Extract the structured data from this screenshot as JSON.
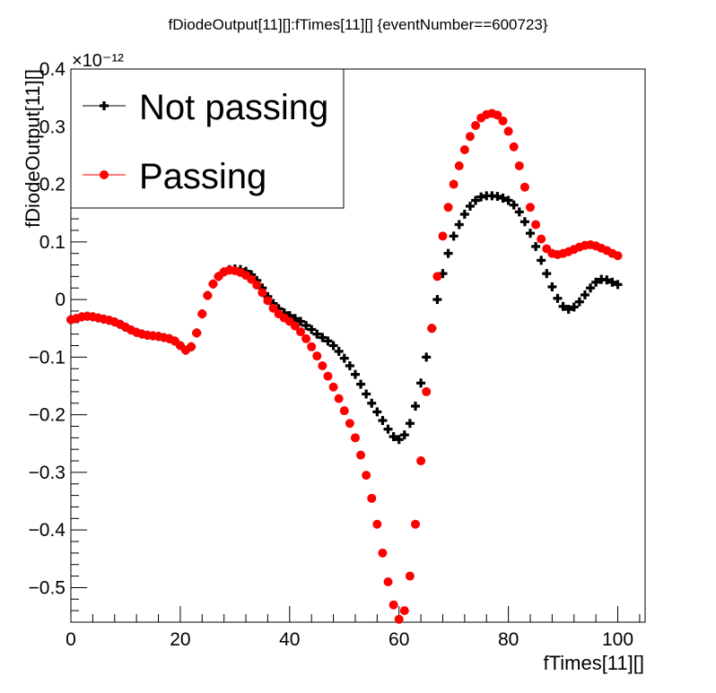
{
  "chart_data": {
    "type": "scatter",
    "title": "fDiodeOutput[11][]:fTimes[11][] {eventNumber==600723}",
    "xlabel": "fTimes[11][]",
    "ylabel": "fDiodeOutput[11][]",
    "y_exponent": "×10⁻¹²",
    "xlim": [
      0,
      105
    ],
    "ylim": [
      -0.56,
      0.4
    ],
    "x_ticks": [
      0,
      20,
      40,
      60,
      80,
      100
    ],
    "x_tick_labels": [
      "0",
      "20",
      "40",
      "60",
      "80",
      "100"
    ],
    "y_ticks": [
      -0.5,
      -0.4,
      -0.3,
      -0.2,
      -0.1,
      0,
      0.1,
      0.2,
      0.3,
      0.4
    ],
    "y_tick_labels": [
      "−0.5",
      "−0.4",
      "−0.3",
      "−0.2",
      "−0.1",
      "0",
      "0.1",
      "0.2",
      "0.3",
      "0.4"
    ],
    "grid": false,
    "legend_position": "top-left",
    "series": [
      {
        "name": "Not passing",
        "marker": "cross",
        "color": "#000000",
        "x": [
          0,
          1,
          2,
          3,
          4,
          5,
          6,
          7,
          8,
          9,
          10,
          11,
          12,
          13,
          14,
          15,
          16,
          17,
          18,
          19,
          20,
          21,
          22,
          23,
          24,
          25,
          26,
          27,
          28,
          29,
          30,
          31,
          32,
          33,
          34,
          35,
          36,
          37,
          38,
          39,
          40,
          41,
          42,
          43,
          44,
          45,
          46,
          47,
          48,
          49,
          50,
          51,
          52,
          53,
          54,
          55,
          56,
          57,
          58,
          59,
          60,
          61,
          62,
          63,
          64,
          65,
          66,
          67,
          68,
          69,
          70,
          71,
          72,
          73,
          74,
          75,
          76,
          77,
          78,
          79,
          80,
          81,
          82,
          83,
          84,
          85,
          86,
          87,
          88,
          89,
          90,
          91,
          92,
          93,
          94,
          95,
          96,
          97,
          98,
          99,
          100
        ],
        "y": [
          -0.035,
          -0.033,
          -0.03,
          -0.029,
          -0.03,
          -0.032,
          -0.034,
          -0.036,
          -0.039,
          -0.043,
          -0.048,
          -0.053,
          -0.057,
          -0.06,
          -0.062,
          -0.063,
          -0.064,
          -0.066,
          -0.068,
          -0.072,
          -0.08,
          -0.088,
          -0.082,
          -0.058,
          -0.025,
          0.007,
          0.027,
          0.04,
          0.048,
          0.052,
          0.053,
          0.052,
          0.049,
          0.043,
          0.033,
          0.02,
          0.005,
          -0.007,
          -0.016,
          -0.023,
          -0.028,
          -0.033,
          -0.038,
          -0.045,
          -0.052,
          -0.06,
          -0.066,
          -0.072,
          -0.08,
          -0.09,
          -0.102,
          -0.115,
          -0.13,
          -0.147,
          -0.164,
          -0.18,
          -0.195,
          -0.21,
          -0.225,
          -0.238,
          -0.243,
          -0.235,
          -0.215,
          -0.185,
          -0.145,
          -0.1,
          -0.05,
          0.0,
          0.045,
          0.08,
          0.11,
          0.13,
          0.148,
          0.162,
          0.172,
          0.178,
          0.18,
          0.18,
          0.179,
          0.176,
          0.172,
          0.164,
          0.152,
          0.135,
          0.115,
          0.092,
          0.068,
          0.045,
          0.022,
          0.002,
          -0.012,
          -0.017,
          -0.013,
          -0.004,
          0.008,
          0.02,
          0.03,
          0.035,
          0.034,
          0.03,
          0.026
        ]
      },
      {
        "name": "Passing",
        "marker": "circle",
        "color": "#ff0000",
        "x": [
          0,
          1,
          2,
          3,
          4,
          5,
          6,
          7,
          8,
          9,
          10,
          11,
          12,
          13,
          14,
          15,
          16,
          17,
          18,
          19,
          20,
          21,
          22,
          23,
          24,
          25,
          26,
          27,
          28,
          29,
          30,
          31,
          32,
          33,
          34,
          35,
          36,
          37,
          38,
          39,
          40,
          41,
          42,
          43,
          44,
          45,
          46,
          47,
          48,
          49,
          50,
          51,
          52,
          53,
          54,
          55,
          56,
          57,
          58,
          59,
          60,
          61,
          62,
          63,
          64,
          65,
          66,
          67,
          68,
          69,
          70,
          71,
          72,
          73,
          74,
          75,
          76,
          77,
          78,
          79,
          80,
          81,
          82,
          83,
          84,
          85,
          86,
          87,
          88,
          89,
          90,
          91,
          92,
          93,
          94,
          95,
          96,
          97,
          98,
          99,
          100
        ],
        "y": [
          -0.035,
          -0.033,
          -0.03,
          -0.029,
          -0.03,
          -0.032,
          -0.034,
          -0.036,
          -0.039,
          -0.043,
          -0.048,
          -0.053,
          -0.057,
          -0.06,
          -0.062,
          -0.063,
          -0.064,
          -0.066,
          -0.068,
          -0.072,
          -0.08,
          -0.088,
          -0.082,
          -0.058,
          -0.025,
          0.007,
          0.027,
          0.04,
          0.048,
          0.051,
          0.05,
          0.047,
          0.042,
          0.035,
          0.025,
          0.012,
          -0.002,
          -0.015,
          -0.025,
          -0.032,
          -0.038,
          -0.046,
          -0.056,
          -0.068,
          -0.082,
          -0.098,
          -0.115,
          -0.133,
          -0.152,
          -0.172,
          -0.193,
          -0.215,
          -0.24,
          -0.27,
          -0.305,
          -0.345,
          -0.39,
          -0.44,
          -0.49,
          -0.53,
          -0.555,
          -0.54,
          -0.48,
          -0.39,
          -0.28,
          -0.16,
          -0.05,
          0.04,
          0.11,
          0.16,
          0.2,
          0.232,
          0.26,
          0.283,
          0.302,
          0.315,
          0.321,
          0.323,
          0.32,
          0.31,
          0.292,
          0.265,
          0.232,
          0.195,
          0.16,
          0.13,
          0.105,
          0.088,
          0.08,
          0.078,
          0.08,
          0.083,
          0.087,
          0.091,
          0.094,
          0.095,
          0.093,
          0.089,
          0.085,
          0.08,
          0.076
        ]
      }
    ]
  }
}
